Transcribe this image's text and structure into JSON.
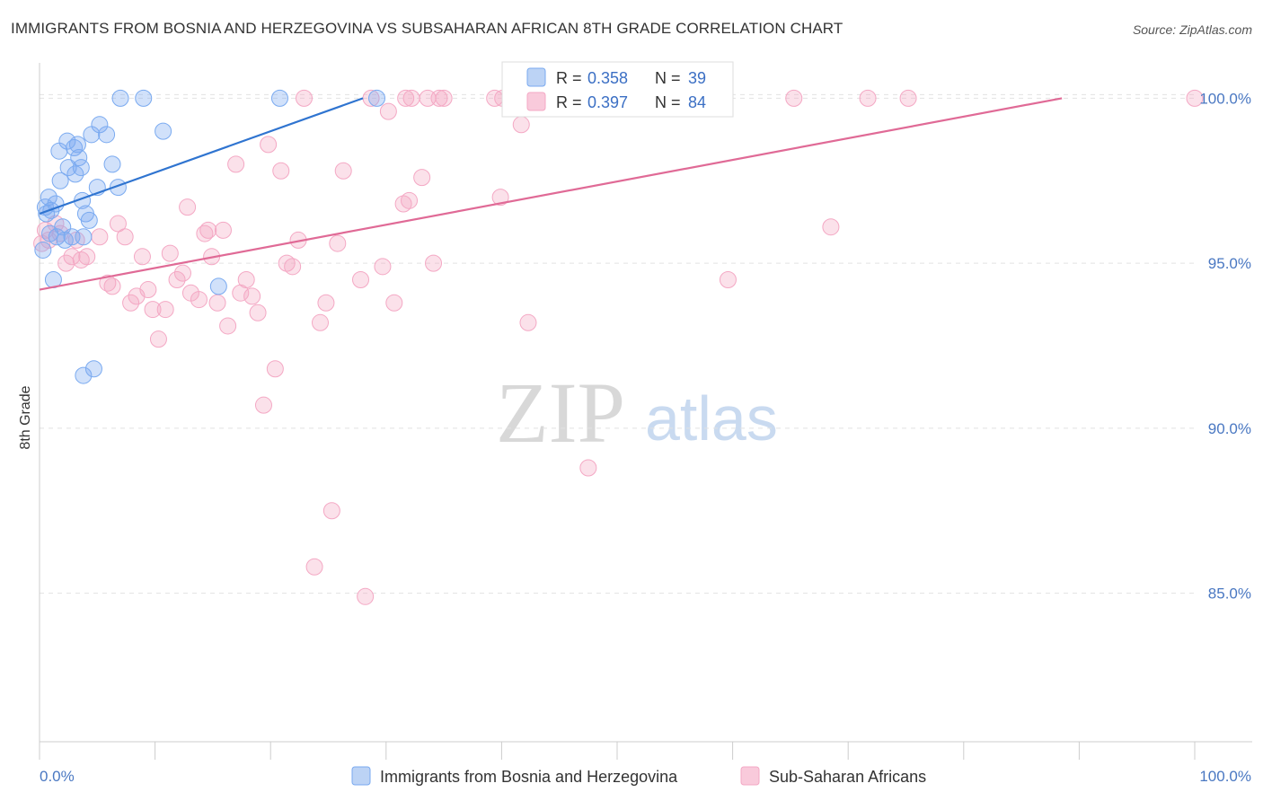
{
  "title": "IMMIGRANTS FROM BOSNIA AND HERZEGOVINA VS SUBSAHARAN AFRICAN 8TH GRADE CORRELATION CHART",
  "source": "Source: ZipAtlas.com",
  "watermark": {
    "zip": "ZIP",
    "atlas": "atlas"
  },
  "colors": {
    "blue": "#7aaaf0",
    "blue_line": "#2f74d0",
    "pink": "#f4a8c4",
    "pink_line": "#e06a96",
    "tick": "#4a78c2"
  },
  "legend": {
    "rows": [
      {
        "r_label": "R =",
        "r_value": "0.358",
        "n_label": "N =",
        "n_value": "39"
      },
      {
        "r_label": "R =",
        "r_value": "0.397",
        "n_label": "N =",
        "n_value": "84"
      }
    ]
  },
  "bottom_legend": [
    "Immigrants from Bosnia and Herzegovina",
    "Sub-Saharan Africans"
  ],
  "chart_data": {
    "type": "scatter",
    "title": "IMMIGRANTS FROM BOSNIA AND HERZEGOVINA VS SUBSAHARAN AFRICAN 8TH GRADE CORRELATION CHART",
    "xlabel": "",
    "ylabel": "8th Grade",
    "xlim": [
      0,
      100
    ],
    "ylim": [
      80.5,
      100.8
    ],
    "x_tick_labels": [
      "0.0%",
      "100.0%"
    ],
    "y_ticks": [
      85,
      90,
      95,
      100
    ],
    "y_tick_labels": [
      "85.0%",
      "90.0%",
      "95.0%",
      "100.0%"
    ],
    "grid": true,
    "legend_position": "top-center",
    "series": [
      {
        "name": "Immigrants from Bosnia and Herzegovina",
        "color": "#7aaaf0",
        "trend": {
          "x": [
            0.0,
            28.0
          ],
          "y": [
            96.5,
            100.0
          ]
        },
        "points": [
          [
            0.3,
            95.4
          ],
          [
            0.5,
            96.7
          ],
          [
            0.6,
            96.5
          ],
          [
            0.8,
            97.0
          ],
          [
            1.0,
            96.6
          ],
          [
            1.2,
            94.5
          ],
          [
            1.4,
            96.8
          ],
          [
            1.5,
            95.8
          ],
          [
            1.7,
            98.4
          ],
          [
            1.8,
            97.5
          ],
          [
            2.0,
            96.1
          ],
          [
            2.2,
            95.7
          ],
          [
            2.4,
            98.7
          ],
          [
            2.5,
            97.9
          ],
          [
            2.8,
            95.8
          ],
          [
            3.0,
            98.5
          ],
          [
            3.1,
            97.7
          ],
          [
            3.3,
            98.6
          ],
          [
            3.4,
            98.2
          ],
          [
            3.6,
            97.9
          ],
          [
            3.7,
            96.9
          ],
          [
            3.8,
            95.8
          ],
          [
            4.0,
            96.5
          ],
          [
            4.3,
            96.3
          ],
          [
            4.5,
            98.9
          ],
          [
            4.7,
            91.8
          ],
          [
            5.0,
            97.3
          ],
          [
            5.2,
            99.2
          ],
          [
            5.8,
            98.9
          ],
          [
            6.3,
            98.0
          ],
          [
            6.8,
            97.3
          ],
          [
            7.0,
            100.0
          ],
          [
            9.0,
            100.0
          ],
          [
            10.7,
            99.0
          ],
          [
            15.5,
            94.3
          ],
          [
            3.8,
            91.6
          ],
          [
            20.8,
            100.0
          ],
          [
            29.2,
            100.0
          ],
          [
            0.9,
            95.9
          ]
        ]
      },
      {
        "name": "Sub-Saharan Africans",
        "color": "#f4a8c4",
        "trend": {
          "x": [
            0.0,
            88.5
          ],
          "y": [
            94.2,
            100.0
          ]
        },
        "points": [
          [
            0.2,
            95.6
          ],
          [
            0.5,
            96.0
          ],
          [
            0.8,
            95.7
          ],
          [
            1.4,
            96.2
          ],
          [
            1.8,
            95.9
          ],
          [
            2.3,
            95.0
          ],
          [
            2.8,
            95.2
          ],
          [
            3.2,
            95.7
          ],
          [
            4.1,
            95.2
          ],
          [
            3.6,
            95.1
          ],
          [
            5.2,
            95.8
          ],
          [
            5.9,
            94.4
          ],
          [
            6.3,
            94.3
          ],
          [
            6.8,
            96.2
          ],
          [
            7.4,
            95.8
          ],
          [
            7.9,
            93.8
          ],
          [
            8.4,
            94.0
          ],
          [
            8.9,
            95.2
          ],
          [
            9.4,
            94.2
          ],
          [
            9.8,
            93.6
          ],
          [
            10.3,
            92.7
          ],
          [
            10.9,
            93.6
          ],
          [
            11.3,
            95.3
          ],
          [
            11.9,
            94.5
          ],
          [
            12.4,
            94.7
          ],
          [
            12.8,
            96.7
          ],
          [
            13.1,
            94.1
          ],
          [
            13.8,
            93.9
          ],
          [
            14.3,
            95.9
          ],
          [
            14.9,
            95.2
          ],
          [
            15.4,
            93.8
          ],
          [
            15.9,
            96.0
          ],
          [
            16.3,
            93.1
          ],
          [
            17.0,
            98.0
          ],
          [
            17.4,
            94.1
          ],
          [
            17.9,
            94.5
          ],
          [
            18.4,
            94.0
          ],
          [
            18.9,
            93.5
          ],
          [
            19.4,
            90.7
          ],
          [
            19.8,
            98.6
          ],
          [
            20.4,
            91.8
          ],
          [
            20.9,
            97.8
          ],
          [
            21.4,
            95.0
          ],
          [
            21.9,
            94.9
          ],
          [
            22.4,
            95.7
          ],
          [
            22.9,
            100.0
          ],
          [
            23.8,
            85.8
          ],
          [
            24.3,
            93.2
          ],
          [
            24.8,
            93.8
          ],
          [
            25.3,
            87.5
          ],
          [
            25.8,
            95.6
          ],
          [
            26.3,
            97.8
          ],
          [
            27.8,
            94.5
          ],
          [
            28.2,
            84.9
          ],
          [
            28.7,
            100.0
          ],
          [
            29.7,
            94.9
          ],
          [
            30.2,
            99.6
          ],
          [
            30.7,
            93.8
          ],
          [
            31.7,
            100.0
          ],
          [
            32.2,
            100.0
          ],
          [
            33.1,
            97.6
          ],
          [
            33.6,
            100.0
          ],
          [
            34.1,
            95.0
          ],
          [
            34.6,
            100.0
          ],
          [
            35.0,
            100.0
          ],
          [
            39.9,
            97.0
          ],
          [
            31.5,
            96.8
          ],
          [
            32.0,
            96.9
          ],
          [
            40.8,
            100.0
          ],
          [
            41.7,
            99.2
          ],
          [
            44.2,
            100.0
          ],
          [
            47.1,
            100.0
          ],
          [
            47.7,
            100.0
          ],
          [
            42.3,
            93.2
          ],
          [
            47.5,
            88.8
          ],
          [
            59.6,
            94.5
          ],
          [
            65.3,
            100.0
          ],
          [
            68.5,
            96.1
          ],
          [
            71.7,
            100.0
          ],
          [
            75.2,
            100.0
          ],
          [
            100.0,
            100.0
          ],
          [
            39.4,
            100.0
          ],
          [
            40.1,
            100.0
          ],
          [
            14.6,
            96.0
          ]
        ]
      }
    ]
  }
}
